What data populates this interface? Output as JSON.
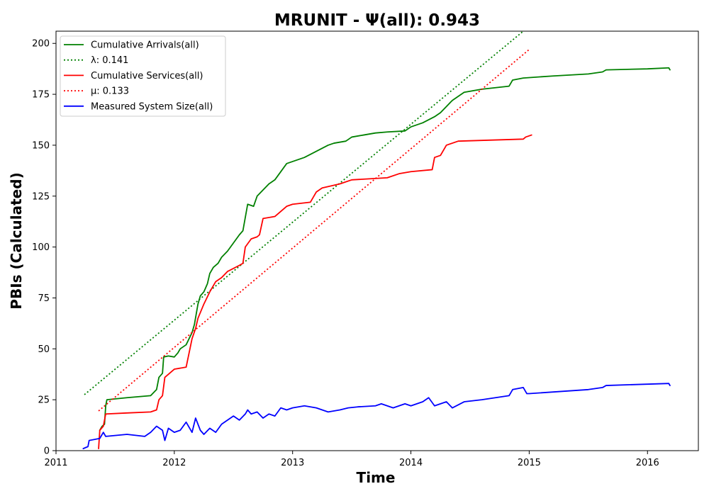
{
  "chart_data": {
    "type": "line",
    "title": "MRUNIT -  Ψ(all): 0.943",
    "xlabel": "Time",
    "ylabel": "PBIs (Calculated)",
    "xlim": [
      2011.0,
      2016.43
    ],
    "ylim": [
      0,
      206
    ],
    "x_ticks": [
      {
        "value": 2011,
        "label": "2011"
      },
      {
        "value": 2012,
        "label": "2012"
      },
      {
        "value": 2013,
        "label": "2013"
      },
      {
        "value": 2014,
        "label": "2014"
      },
      {
        "value": 2015,
        "label": "2015"
      },
      {
        "value": 2016,
        "label": "2016"
      }
    ],
    "y_ticks": [
      {
        "value": 0,
        "label": "0"
      },
      {
        "value": 25,
        "label": "25"
      },
      {
        "value": 50,
        "label": "50"
      },
      {
        "value": 75,
        "label": "75"
      },
      {
        "value": 100,
        "label": "100"
      },
      {
        "value": 125,
        "label": "125"
      },
      {
        "value": 150,
        "label": "150"
      },
      {
        "value": 175,
        "label": "175"
      },
      {
        "value": 200,
        "label": "200"
      }
    ],
    "legend_position": "top-left",
    "grid": false,
    "series": [
      {
        "name": "Cumulative Arrivals(all)",
        "color": "#008000",
        "style": "solid",
        "points": [
          [
            2011.37,
            10
          ],
          [
            2011.39,
            12
          ],
          [
            2011.41,
            13
          ],
          [
            2011.42,
            22
          ],
          [
            2011.43,
            25
          ],
          [
            2011.6,
            26
          ],
          [
            2011.8,
            27
          ],
          [
            2011.85,
            30
          ],
          [
            2011.87,
            36
          ],
          [
            2011.9,
            38
          ],
          [
            2011.91,
            46
          ],
          [
            2011.95,
            46.5
          ],
          [
            2012.0,
            46
          ],
          [
            2012.03,
            48
          ],
          [
            2012.05,
            50
          ],
          [
            2012.1,
            52
          ],
          [
            2012.15,
            58
          ],
          [
            2012.17,
            62
          ],
          [
            2012.2,
            72
          ],
          [
            2012.22,
            76
          ],
          [
            2012.25,
            78
          ],
          [
            2012.28,
            82
          ],
          [
            2012.3,
            87
          ],
          [
            2012.33,
            90
          ],
          [
            2012.37,
            92
          ],
          [
            2012.4,
            95
          ],
          [
            2012.45,
            98
          ],
          [
            2012.5,
            102
          ],
          [
            2012.55,
            106
          ],
          [
            2012.58,
            108
          ],
          [
            2012.62,
            121
          ],
          [
            2012.67,
            120
          ],
          [
            2012.7,
            125
          ],
          [
            2012.75,
            128
          ],
          [
            2012.8,
            131
          ],
          [
            2012.85,
            133
          ],
          [
            2012.9,
            137
          ],
          [
            2012.95,
            141
          ],
          [
            2013.0,
            142
          ],
          [
            2013.1,
            144
          ],
          [
            2013.2,
            147
          ],
          [
            2013.3,
            150
          ],
          [
            2013.35,
            151
          ],
          [
            2013.45,
            152
          ],
          [
            2013.5,
            154
          ],
          [
            2013.6,
            155
          ],
          [
            2013.7,
            156
          ],
          [
            2013.8,
            156.5
          ],
          [
            2013.95,
            157
          ],
          [
            2014.0,
            159
          ],
          [
            2014.1,
            161
          ],
          [
            2014.2,
            164
          ],
          [
            2014.25,
            166
          ],
          [
            2014.3,
            169
          ],
          [
            2014.35,
            172
          ],
          [
            2014.4,
            174
          ],
          [
            2014.45,
            176
          ],
          [
            2014.6,
            177.5
          ],
          [
            2014.83,
            179
          ],
          [
            2014.86,
            182
          ],
          [
            2014.95,
            183
          ],
          [
            2015.2,
            184
          ],
          [
            2015.5,
            185
          ],
          [
            2015.62,
            186
          ],
          [
            2015.65,
            187
          ],
          [
            2016.0,
            187.5
          ],
          [
            2016.18,
            188
          ],
          [
            2016.19,
            187
          ]
        ]
      },
      {
        "name": "λ: 0.141",
        "color": "#008000",
        "style": "dotted",
        "points": [
          [
            2011.24,
            27.5
          ],
          [
            2014.95,
            206
          ]
        ]
      },
      {
        "name": "Cumulative Services(all)",
        "color": "#ff0000",
        "style": "solid",
        "points": [
          [
            2011.36,
            1
          ],
          [
            2011.37,
            10
          ],
          [
            2011.4,
            12
          ],
          [
            2011.42,
            18
          ],
          [
            2011.6,
            18.5
          ],
          [
            2011.8,
            19
          ],
          [
            2011.85,
            20
          ],
          [
            2011.87,
            25
          ],
          [
            2011.9,
            27
          ],
          [
            2011.92,
            36
          ],
          [
            2012.0,
            40
          ],
          [
            2012.1,
            41
          ],
          [
            2012.15,
            55
          ],
          [
            2012.18,
            60
          ],
          [
            2012.2,
            65
          ],
          [
            2012.25,
            72
          ],
          [
            2012.3,
            78
          ],
          [
            2012.35,
            83
          ],
          [
            2012.4,
            85
          ],
          [
            2012.45,
            88
          ],
          [
            2012.55,
            91
          ],
          [
            2012.58,
            92
          ],
          [
            2012.6,
            100
          ],
          [
            2012.65,
            104
          ],
          [
            2012.7,
            105
          ],
          [
            2012.72,
            106
          ],
          [
            2012.75,
            114
          ],
          [
            2012.85,
            115
          ],
          [
            2012.95,
            120
          ],
          [
            2013.0,
            121
          ],
          [
            2013.15,
            122
          ],
          [
            2013.2,
            127
          ],
          [
            2013.25,
            129
          ],
          [
            2013.4,
            131
          ],
          [
            2013.5,
            133
          ],
          [
            2013.8,
            134
          ],
          [
            2013.9,
            136
          ],
          [
            2014.0,
            137
          ],
          [
            2014.18,
            138
          ],
          [
            2014.2,
            144
          ],
          [
            2014.25,
            145
          ],
          [
            2014.3,
            150
          ],
          [
            2014.4,
            152
          ],
          [
            2014.95,
            153
          ],
          [
            2014.97,
            154
          ],
          [
            2015.02,
            155
          ]
        ]
      },
      {
        "name": "μ: 0.133",
        "color": "#ff0000",
        "style": "dotted",
        "points": [
          [
            2011.36,
            19.5
          ],
          [
            2015.0,
            197
          ]
        ]
      },
      {
        "name": "Measured System Size(all)",
        "color": "#0000ff",
        "style": "solid",
        "points": [
          [
            2011.23,
            1
          ],
          [
            2011.27,
            2
          ],
          [
            2011.28,
            5
          ],
          [
            2011.37,
            6
          ],
          [
            2011.4,
            9
          ],
          [
            2011.42,
            7
          ],
          [
            2011.6,
            8
          ],
          [
            2011.75,
            7
          ],
          [
            2011.8,
            9
          ],
          [
            2011.85,
            12
          ],
          [
            2011.9,
            10
          ],
          [
            2011.92,
            5
          ],
          [
            2011.95,
            11
          ],
          [
            2012.0,
            9
          ],
          [
            2012.05,
            10
          ],
          [
            2012.1,
            14
          ],
          [
            2012.15,
            9
          ],
          [
            2012.18,
            16
          ],
          [
            2012.22,
            10
          ],
          [
            2012.25,
            8
          ],
          [
            2012.3,
            11
          ],
          [
            2012.35,
            9
          ],
          [
            2012.4,
            13
          ],
          [
            2012.45,
            15
          ],
          [
            2012.5,
            17
          ],
          [
            2012.55,
            15
          ],
          [
            2012.6,
            18
          ],
          [
            2012.62,
            20
          ],
          [
            2012.65,
            18
          ],
          [
            2012.7,
            19
          ],
          [
            2012.75,
            16
          ],
          [
            2012.8,
            18
          ],
          [
            2012.85,
            17
          ],
          [
            2012.9,
            21
          ],
          [
            2012.95,
            20
          ],
          [
            2013.0,
            21
          ],
          [
            2013.1,
            22
          ],
          [
            2013.2,
            21
          ],
          [
            2013.25,
            20
          ],
          [
            2013.3,
            19
          ],
          [
            2013.4,
            20
          ],
          [
            2013.47,
            21
          ],
          [
            2013.55,
            21.5
          ],
          [
            2013.7,
            22
          ],
          [
            2013.75,
            23
          ],
          [
            2013.85,
            21
          ],
          [
            2013.95,
            23
          ],
          [
            2014.0,
            22
          ],
          [
            2014.1,
            24
          ],
          [
            2014.15,
            26
          ],
          [
            2014.2,
            22
          ],
          [
            2014.3,
            24
          ],
          [
            2014.35,
            21
          ],
          [
            2014.45,
            24
          ],
          [
            2014.6,
            25
          ],
          [
            2014.83,
            27
          ],
          [
            2014.86,
            30
          ],
          [
            2014.95,
            31
          ],
          [
            2014.98,
            28
          ],
          [
            2015.0,
            28
          ],
          [
            2015.5,
            30
          ],
          [
            2015.62,
            31
          ],
          [
            2015.65,
            32
          ],
          [
            2016.18,
            33
          ],
          [
            2016.19,
            32
          ]
        ]
      }
    ]
  }
}
